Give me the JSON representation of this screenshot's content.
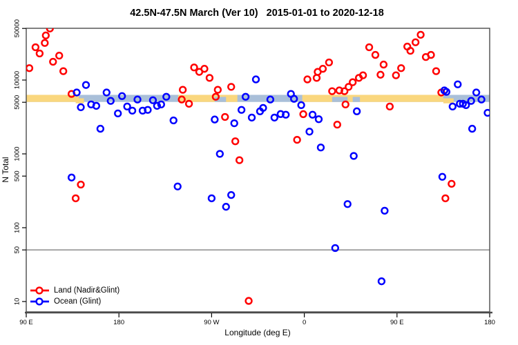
{
  "chart_data": {
    "type": "scatter",
    "title": "42.5N-47.5N March (Ver 10)   2015-01-01 to 2020-12-18",
    "xlabel": "Longitude (deg E)",
    "ylabel": "N Total",
    "x_axis": {
      "min": 90,
      "max": 540,
      "tick_positions": [
        90,
        180,
        270,
        360,
        450,
        540
      ],
      "tick_labels": [
        "90 E",
        "180",
        "90 W",
        "0",
        "90 E",
        "180"
      ],
      "note": "longitude unwrapped eastward starting at 90E; 270=90W, 360=0, 450=90E, 540=180"
    },
    "y_axis": {
      "scale": "log10",
      "min": 7,
      "max": 57000,
      "tick_values": [
        10,
        50,
        100,
        500,
        1000,
        5000,
        10000,
        50000
      ]
    },
    "reference_line": {
      "value": 50,
      "color": "#7f7f7f"
    },
    "coastline_strip": {
      "n_low": 5050,
      "n_high": 6300,
      "land_color": "#FAD77E",
      "ocean_color": "#A9BFD9",
      "land_segments_deg": [
        [
          90,
          141
        ],
        [
          237.5,
          295
        ],
        [
          358,
          495
        ]
      ],
      "inland_water_deg": [
        [
          273,
          284
        ],
        [
          387,
          402
        ],
        [
          407,
          414
        ]
      ],
      "island_patches_deg": [
        [
          138,
          146
        ],
        [
          495,
          505
        ]
      ]
    },
    "series": [
      {
        "name": "Land (Nadir&Glint)",
        "color": "#FF0000",
        "points": [
          [
            93,
            14500
          ],
          [
            99,
            27800
          ],
          [
            103,
            22900
          ],
          [
            108,
            31800
          ],
          [
            109,
            40200
          ],
          [
            113,
            49900
          ],
          [
            116,
            17700
          ],
          [
            122,
            21400
          ],
          [
            126,
            13200
          ],
          [
            134,
            6490
          ],
          [
            242,
            7380
          ],
          [
            241,
            5450
          ],
          [
            248,
            4770
          ],
          [
            253,
            14800
          ],
          [
            258,
            12900
          ],
          [
            263,
            14200
          ],
          [
            268,
            10700
          ],
          [
            274,
            5930
          ],
          [
            276,
            7380
          ],
          [
            289,
            8090
          ],
          [
            283,
            3160
          ],
          [
            293,
            1480
          ],
          [
            297,
            822
          ],
          [
            359,
            3450
          ],
          [
            353,
            1550
          ],
          [
            363,
            10200
          ],
          [
            372,
            10700
          ],
          [
            373,
            12900
          ],
          [
            378,
            14200
          ],
          [
            384,
            17300
          ],
          [
            387,
            7070
          ],
          [
            392,
            2490
          ],
          [
            473,
            41000
          ],
          [
            468,
            32500
          ],
          [
            460,
            28400
          ],
          [
            463,
            24900
          ],
          [
            423,
            27800
          ],
          [
            429,
            21900
          ],
          [
            478,
            20500
          ],
          [
            483,
            21900
          ],
          [
            437,
            16200
          ],
          [
            454,
            14500
          ],
          [
            449,
            11600
          ],
          [
            434,
            11800
          ],
          [
            488,
            13200
          ],
          [
            417,
            11600
          ],
          [
            413,
            10700
          ],
          [
            407,
            9340
          ],
          [
            403,
            8090
          ],
          [
            399,
            7070
          ],
          [
            394,
            7230
          ],
          [
            400,
            4670
          ],
          [
            443,
            4380
          ],
          [
            493,
            6780
          ],
          [
            143,
            384
          ],
          [
            138,
            250
          ],
          [
            306,
            10.2
          ],
          [
            503,
            393
          ],
          [
            497,
            250
          ]
        ]
      },
      {
        "name": "Ocean (Glint)",
        "color": "#0000FF",
        "points": [
          [
            139,
            6780
          ],
          [
            148,
            8570
          ],
          [
            143,
            4280
          ],
          [
            153,
            4670
          ],
          [
            158,
            4470
          ],
          [
            162,
            2190
          ],
          [
            168,
            6780
          ],
          [
            172,
            5220
          ],
          [
            179,
            3530
          ],
          [
            183,
            6060
          ],
          [
            188,
            4380
          ],
          [
            193,
            3850
          ],
          [
            198,
            5450
          ],
          [
            203,
            3850
          ],
          [
            208,
            3940
          ],
          [
            213,
            5330
          ],
          [
            217,
            4470
          ],
          [
            221,
            4670
          ],
          [
            226,
            5930
          ],
          [
            233,
            2840
          ],
          [
            313,
            10200
          ],
          [
            303,
            5930
          ],
          [
            327,
            5450
          ],
          [
            299,
            3940
          ],
          [
            309,
            3100
          ],
          [
            317,
            3770
          ],
          [
            320,
            4190
          ],
          [
            331,
            3100
          ],
          [
            337,
            3460
          ],
          [
            342,
            3390
          ],
          [
            273,
            2920
          ],
          [
            292,
            2600
          ],
          [
            278,
            1000
          ],
          [
            347,
            6490
          ],
          [
            350,
            5570
          ],
          [
            357,
            4570
          ],
          [
            365,
            2000
          ],
          [
            368,
            3390
          ],
          [
            374,
            2950
          ],
          [
            376,
            1220
          ],
          [
            509,
            8740
          ],
          [
            411,
            3770
          ],
          [
            496,
            7230
          ],
          [
            498,
            6920
          ],
          [
            527,
            6780
          ],
          [
            514,
            4770
          ],
          [
            522,
            5220
          ],
          [
            532,
            5450
          ],
          [
            504,
            4380
          ],
          [
            511,
            4770
          ],
          [
            517,
            4570
          ],
          [
            538,
            3600
          ],
          [
            523,
            2190
          ],
          [
            408,
            938
          ],
          [
            134,
            478
          ],
          [
            237,
            362
          ],
          [
            270,
            250
          ],
          [
            289,
            277
          ],
          [
            284,
            192
          ],
          [
            390,
            53
          ],
          [
            494,
            489
          ],
          [
            402,
            209
          ],
          [
            438,
            170
          ],
          [
            435,
            18.8
          ]
        ]
      }
    ],
    "legend": {
      "position": "bottom-left"
    }
  }
}
